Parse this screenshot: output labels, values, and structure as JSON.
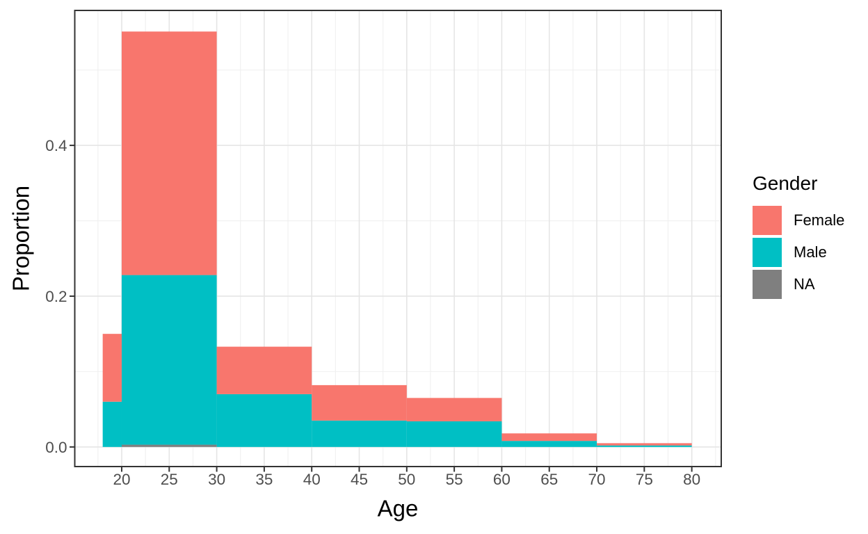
{
  "figure": {
    "background": "#FFFFFF",
    "panel_border_color": "#333333",
    "grid_major_color": "#E5E5E5",
    "grid_minor_color": "#F0F0F0",
    "tick_color": "#333333",
    "tick_label_color": "#4D4D4D",
    "axis_title_color": "#000000"
  },
  "chart_data": {
    "type": "bar",
    "subtype": "stacked-histogram",
    "title": "",
    "xlabel": "Age",
    "ylabel": "Proportion",
    "legend_title": "Gender",
    "legend_position": "right",
    "grid": true,
    "xlim": [
      15.06,
      83.1
    ],
    "ylim": [
      -0.026,
      0.579
    ],
    "x_ticks": [
      20,
      25,
      30,
      35,
      40,
      45,
      50,
      55,
      60,
      65,
      70,
      75,
      80
    ],
    "x_minor_ticks": [
      17.5,
      22.5,
      27.5,
      32.5,
      37.5,
      42.5,
      47.5,
      52.5,
      57.5,
      62.5,
      67.5,
      72.5,
      77.5,
      82.5
    ],
    "y_ticks": [
      0.0,
      0.2,
      0.4
    ],
    "y_tick_labels": [
      "0.0",
      "0.2",
      "0.4"
    ],
    "y_minor_ticks": [
      0.1,
      0.3,
      0.5
    ],
    "bins": [
      [
        18,
        20
      ],
      [
        20,
        30
      ],
      [
        30,
        40
      ],
      [
        40,
        50
      ],
      [
        50,
        60
      ],
      [
        60,
        70
      ],
      [
        70,
        80
      ]
    ],
    "bin_totals": [
      0.15,
      0.551,
      0.133,
      0.082,
      0.065,
      0.018,
      0.005
    ],
    "stack_order_bottom_to_top": [
      "NA",
      "Male",
      "Female"
    ],
    "series": [
      {
        "name": "Female",
        "color": "#F8766D",
        "values": [
          0.09,
          0.323,
          0.063,
          0.047,
          0.031,
          0.01,
          0.003
        ]
      },
      {
        "name": "Male",
        "color": "#00BFC4",
        "values": [
          0.06,
          0.225,
          0.07,
          0.035,
          0.034,
          0.008,
          0.002
        ]
      },
      {
        "name": "NA",
        "color": "#7F7F7F",
        "values": [
          0.0,
          0.003,
          0.0,
          0.0,
          0.0,
          0.0,
          0.0
        ]
      }
    ]
  }
}
